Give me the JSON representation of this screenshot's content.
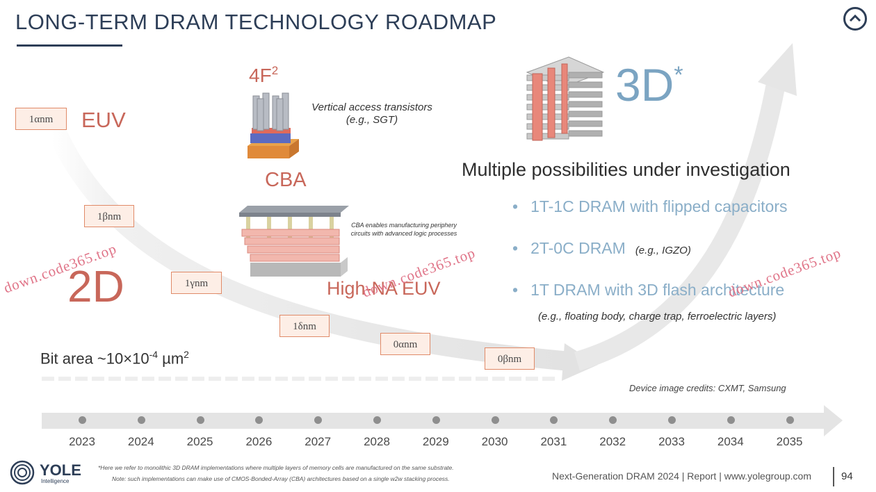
{
  "header": {
    "title": "LONG-TERM DRAM TECHNOLOGY ROADMAP",
    "nav_icon": "chevron-up-icon"
  },
  "nodes": [
    "1αnm",
    "1βnm",
    "1γnm",
    "1δnm",
    "0αnm",
    "0βnm"
  ],
  "labels": {
    "euv": "EUV",
    "two_d": "2D",
    "four_f": "4F",
    "four_f_sup": "2",
    "cba": "CBA",
    "high_na": "High-NA EUV",
    "vertical_access": "Vertical access transistors (e.g., SGT)",
    "cba_note": "CBA enables manufacturing periphery circuits with advanced logic processes",
    "three_d": "3D",
    "three_d_sup": "*"
  },
  "three_d_panel": {
    "heading": "Multiple possibilities under investigation",
    "bullets": [
      {
        "text": "1T-1C DRAM with flipped capacitors",
        "example": ""
      },
      {
        "text": "2T-0C DRAM",
        "example": "(e.g., IGZO)"
      },
      {
        "text": "1T DRAM with 3D flash architecture",
        "example": ""
      }
    ],
    "bullet3_example": "(e.g., floating body, charge trap, ferroelectric layers)"
  },
  "bit_area": {
    "text": "Bit area ~10×10",
    "sup": "-4",
    "unit": " µm",
    "unit_sup": "2"
  },
  "credits": "Device image credits: CXMT, Samsung",
  "timeline": {
    "years": [
      "2023",
      "2024",
      "2025",
      "2026",
      "2027",
      "2028",
      "2029",
      "2030",
      "2031",
      "2032",
      "2033",
      "2034",
      "2035"
    ]
  },
  "footnotes": [
    "*Here we refer to monolithic 3D DRAM implementations where multiple layers of memory cells are manufactured on the same substrate.",
    "Note: such implementations can make use of CMOS-Bonded-Array (CBA) architectures based on a single w2w stacking process."
  ],
  "footer": {
    "brand": "YOLE",
    "brand_sub": "Intelligence",
    "report": "Next-Generation DRAM 2024 | Report | www.yolegroup.com",
    "page": "94"
  },
  "watermark": "down.code365.top",
  "colors": {
    "accent": "#2d3e57",
    "salmon": "#c8675a",
    "blue": "#7ba4c2",
    "node_border": "#e08a68"
  }
}
